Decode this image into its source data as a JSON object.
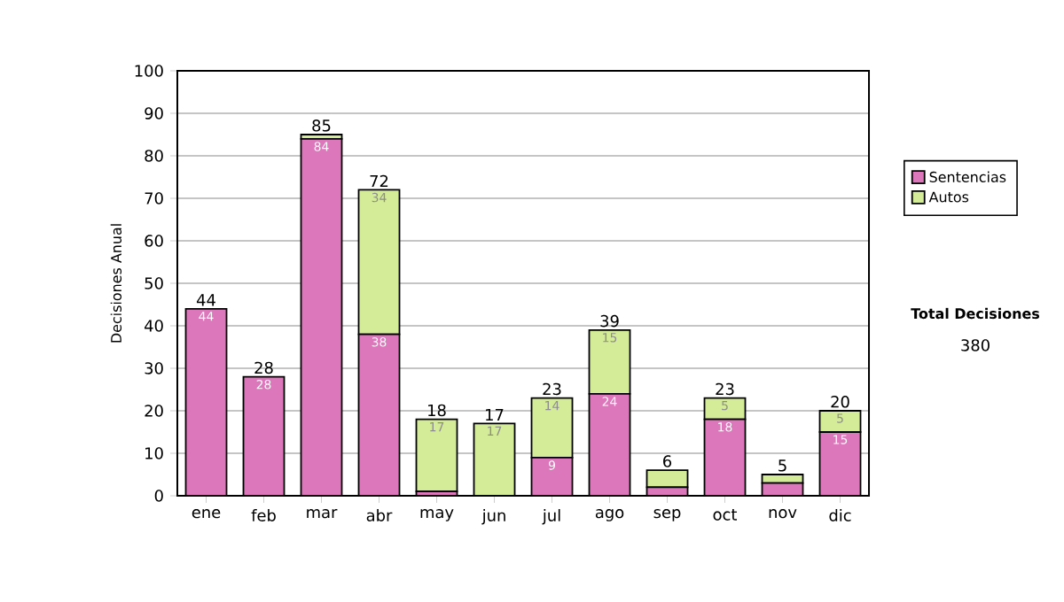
{
  "chart_data": {
    "type": "bar",
    "stacked": true,
    "categories": [
      "ene",
      "feb",
      "mar",
      "abr",
      "may",
      "jun",
      "jul",
      "ago",
      "sep",
      "oct",
      "nov",
      "dic"
    ],
    "ylabel": "Decisiones Anual",
    "series": [
      {
        "name": "Sentencias",
        "color": "#dd77bb",
        "values": [
          44,
          28,
          84,
          38,
          1,
          0,
          9,
          24,
          2,
          18,
          3,
          15
        ],
        "value_labels": [
          "44",
          "28",
          "84",
          "38",
          null,
          null,
          "9",
          "24",
          null,
          "18",
          null,
          "15"
        ]
      },
      {
        "name": "Autos",
        "color": "#d4eb98",
        "values": [
          0,
          0,
          1,
          34,
          17,
          17,
          14,
          15,
          4,
          5,
          2,
          5
        ],
        "value_labels": [
          null,
          null,
          null,
          "34",
          "17",
          "17",
          "14",
          "15",
          null,
          "5",
          null,
          "5"
        ]
      }
    ],
    "totals": [
      "44",
      "28",
      "85",
      "72",
      "18",
      "17",
      "23",
      "39",
      "6",
      "23",
      "5",
      "20"
    ],
    "ylim": [
      0,
      100
    ],
    "yticks": [
      0,
      10,
      20,
      30,
      40,
      50,
      60,
      70,
      80,
      90,
      100
    ],
    "grid": "y",
    "legend": "right",
    "annotations": [
      "Total Decisiones",
      "380"
    ]
  }
}
